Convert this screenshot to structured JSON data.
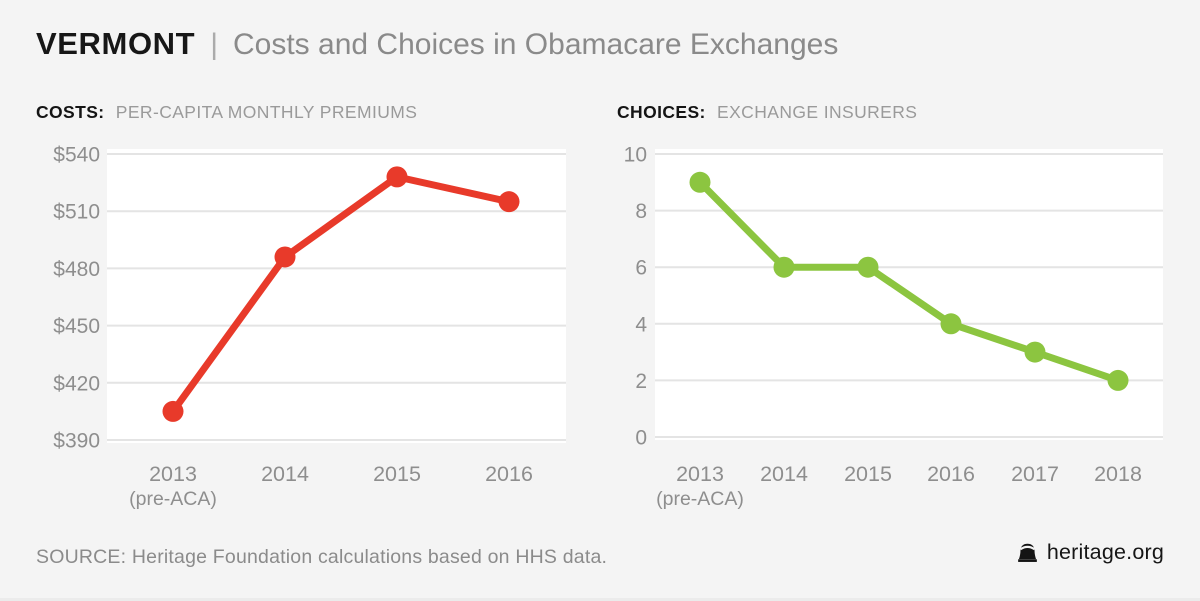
{
  "header": {
    "state": "VERMONT",
    "divider": "|",
    "title": "Costs and Choices in Obamacare Exchanges"
  },
  "chart_data": [
    {
      "id": "costs",
      "type": "line",
      "title_bold": "COSTS:",
      "title_text": "PER-CAPITA MONTHLY PREMIUMS",
      "categories": [
        "2013",
        "2014",
        "2015",
        "2016"
      ],
      "category_note": {
        "index": 0,
        "text": "(pre-ACA)"
      },
      "values": [
        405,
        486,
        528,
        515
      ],
      "y_ticks": [
        540,
        510,
        480,
        450,
        420,
        390
      ],
      "y_tick_prefix": "$",
      "ylim": [
        390,
        540
      ],
      "line_color": "#e83a2a",
      "grid": true,
      "legend": false
    },
    {
      "id": "choices",
      "type": "line",
      "title_bold": "CHOICES:",
      "title_text": "EXCHANGE INSURERS",
      "categories": [
        "2013",
        "2014",
        "2015",
        "2016",
        "2017",
        "2018"
      ],
      "category_note": {
        "index": 0,
        "text": "(pre-ACA)"
      },
      "values": [
        9,
        6,
        6,
        4,
        3,
        2
      ],
      "y_ticks": [
        10,
        8,
        6,
        4,
        2,
        0
      ],
      "y_tick_prefix": "",
      "ylim": [
        0,
        10
      ],
      "line_color": "#8cc540",
      "grid": true,
      "legend": false
    }
  ],
  "footer": {
    "source": "SOURCE: Heritage Foundation calculations based on HHS data.",
    "brand": "heritage.org"
  },
  "colors": {
    "background": "#f4f4f4",
    "plot_background": "#ffffff",
    "gridline": "#e4e4e4",
    "axis_text": "#8e8e8e",
    "title_black": "#171717",
    "title_gray": "#8a8a8a",
    "costs_red": "#e83a2a",
    "choices_green": "#8cc540"
  }
}
